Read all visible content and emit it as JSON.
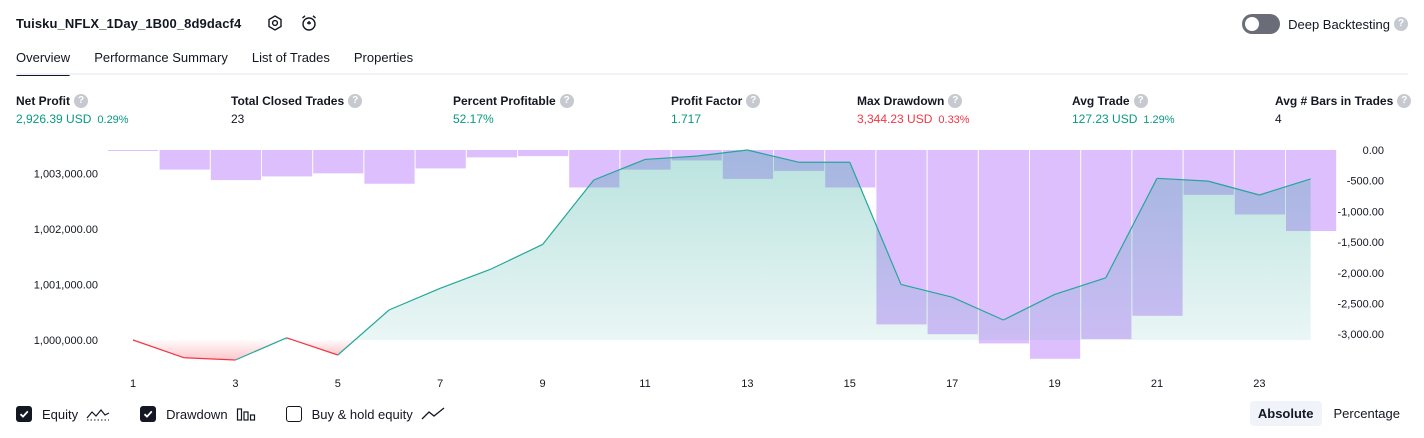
{
  "header": {
    "strategy_name": "Tuisku_NFLX_1Day_1B00_8d9dacf4",
    "settings_icon": "settings-hex-icon",
    "alert_icon": "add-alarm-icon",
    "deep_backtesting_label": "Deep Backtesting",
    "deep_backtesting_enabled": false,
    "help_glyph": "?"
  },
  "tabs": [
    {
      "label": "Overview",
      "active": true
    },
    {
      "label": "Performance Summary",
      "active": false
    },
    {
      "label": "List of Trades",
      "active": false
    },
    {
      "label": "Properties",
      "active": false
    }
  ],
  "metrics": [
    {
      "label": "Net Profit",
      "value": "2,926.39 USD",
      "pct": "0.29%",
      "color": "#089981"
    },
    {
      "label": "Total Closed Trades",
      "value": "23",
      "pct": "",
      "color": "#131722"
    },
    {
      "label": "Percent Profitable",
      "value": "52.17%",
      "pct": "",
      "color": "#089981"
    },
    {
      "label": "Profit Factor",
      "value": "1.717",
      "pct": "",
      "color": "#089981"
    },
    {
      "label": "Max Drawdown",
      "value": "3,344.23 USD",
      "pct": "0.33%",
      "color": "#f23645"
    },
    {
      "label": "Avg Trade",
      "value": "127.23 USD",
      "pct": "1.29%",
      "color": "#089981"
    },
    {
      "label": "Avg # Bars in Trades",
      "value": "4",
      "pct": "",
      "color": "#131722"
    }
  ],
  "chart_data": {
    "type": "area",
    "x": [
      1,
      2,
      3,
      4,
      5,
      6,
      7,
      8,
      9,
      10,
      11,
      12,
      13,
      14,
      15,
      16,
      17,
      18,
      19,
      20,
      21,
      22,
      23,
      24
    ],
    "x_tick_labels": [
      "1",
      "3",
      "5",
      "7",
      "9",
      "11",
      "13",
      "15",
      "17",
      "19",
      "21",
      "23"
    ],
    "left_axis": {
      "ticks": [
        "1,000,000.00",
        "1,001,000.00",
        "1,002,000.00",
        "1,003,000.00"
      ],
      "range": [
        999600,
        1003420
      ]
    },
    "right_axis": {
      "ticks": [
        "0.00",
        "-500.00",
        "-1,000.00",
        "-1,500.00",
        "-2,000.00",
        "-2,500.00",
        "-3,000.00"
      ],
      "range": [
        -3420,
        0
      ]
    },
    "series": [
      {
        "type": "line",
        "values": [
          1000000,
          999680,
          999640,
          1000040,
          999730,
          1000540,
          1000930,
          1001280,
          1001720,
          1002880,
          1003250,
          1003310,
          1003420,
          1003200,
          1003200,
          1001000,
          1000770,
          1000360,
          1000820,
          1001120,
          1002910,
          1002860,
          1002610,
          1002900
        ],
        "baseline": 1000000,
        "color_up": "#26a69a",
        "color_down": "#f23645"
      },
      {
        "type": "bar",
        "values": [
          -10,
          -320,
          -490,
          -430,
          -380,
          -550,
          -300,
          -120,
          -100,
          -610,
          -320,
          -170,
          -470,
          -340,
          -610,
          -2840,
          -3000,
          -3150,
          -3400,
          -3080,
          -2700,
          -730,
          -1050,
          -1320
        ],
        "color": "#d8b4fe"
      }
    ],
    "grid": false
  },
  "legend": [
    {
      "label": "Equity",
      "checked": true,
      "icon": "equity-line-icon"
    },
    {
      "label": "Drawdown",
      "checked": true,
      "icon": "drawdown-bars-icon"
    },
    {
      "label": "Buy & hold equity",
      "checked": false,
      "icon": "buy-hold-line-icon"
    }
  ],
  "mode": {
    "options": [
      "Absolute",
      "Percentage"
    ],
    "selected": "Absolute"
  }
}
